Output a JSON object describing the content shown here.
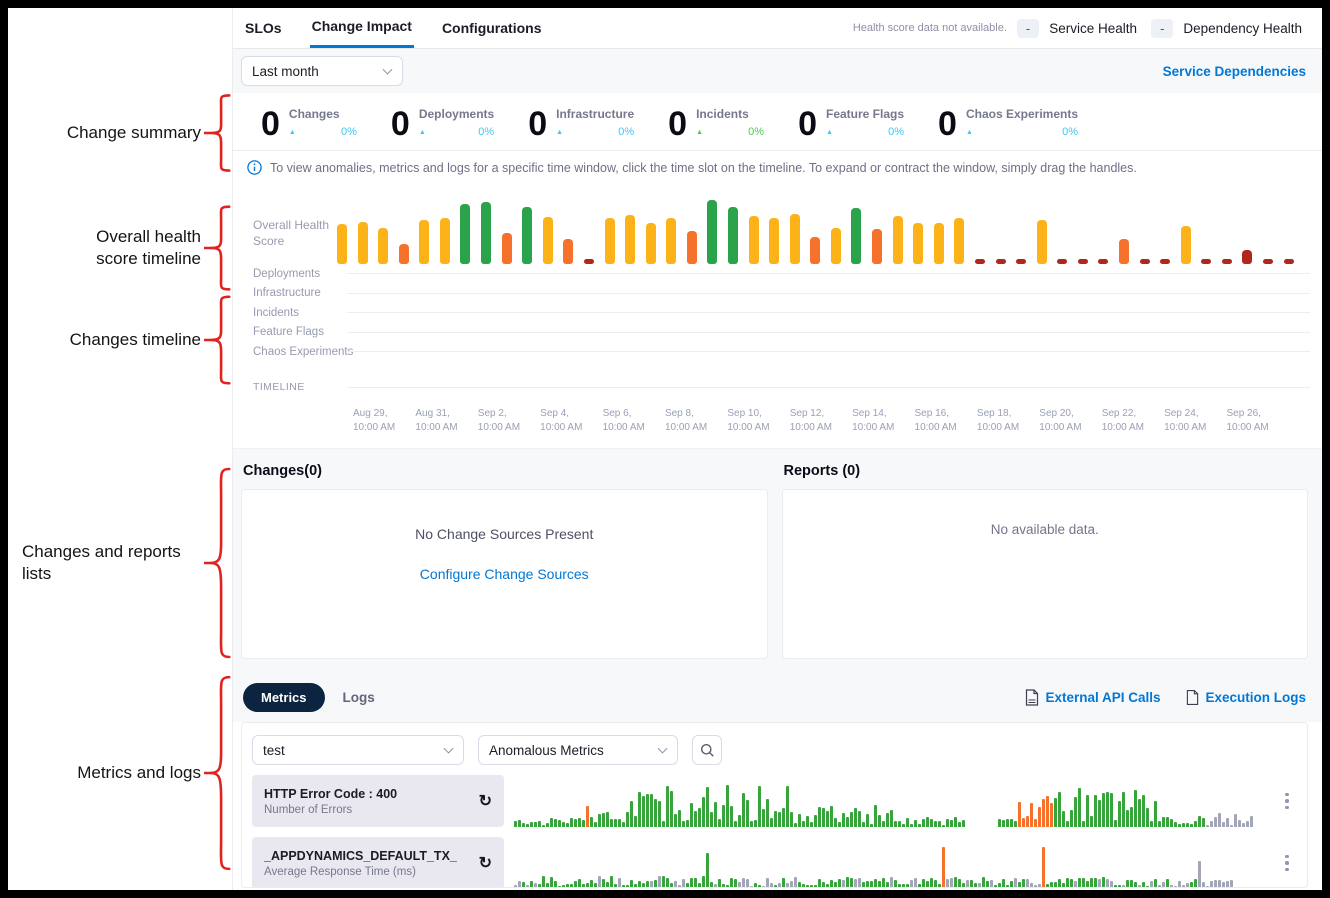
{
  "annotations": [
    "Change summary",
    "Overall health score timeline",
    "Changes timeline",
    "Changes and reports lists",
    "Metrics and logs"
  ],
  "header": {
    "tabs": [
      {
        "label": "SLOs",
        "active": false
      },
      {
        "label": "Change Impact",
        "active": true
      },
      {
        "label": "Configurations",
        "active": false
      }
    ],
    "health_note": "Health score data not available.",
    "indicators": [
      {
        "value": "-",
        "label": "Service Health"
      },
      {
        "value": "-",
        "label": "Dependency Health"
      }
    ]
  },
  "toolbar": {
    "time_range": "Last month",
    "service_dependencies_label": "Service Dependencies"
  },
  "summary": {
    "tiles": [
      {
        "count": "0",
        "label": "Changes",
        "delta": "0%",
        "color": "#3dc7f6"
      },
      {
        "count": "0",
        "label": "Deployments",
        "delta": "0%",
        "color": "#3dc7f6"
      },
      {
        "count": "0",
        "label": "Infrastructure",
        "delta": "0%",
        "color": "#3dc7f6"
      },
      {
        "count": "0",
        "label": "Incidents",
        "delta": "0%",
        "color": "#4dc952"
      },
      {
        "count": "0",
        "label": "Feature Flags",
        "delta": "0%",
        "color": "#3dc7f6"
      },
      {
        "count": "0",
        "label": "Chaos Experiments",
        "delta": "0%",
        "color": "#3dc7f6"
      }
    ]
  },
  "info_banner": "To view anomalies, metrics and logs for a specific time window, click the time slot on the timeline. To expand or contract the window, simply drag the handles.",
  "changes_timeline": {
    "rows": [
      "Deployments",
      "Infrastructure",
      "Incidents",
      "Feature Flags",
      "Chaos Experiments"
    ],
    "timeline_label": "TIMELINE",
    "dates": [
      "Aug 29, 10:00 AM",
      "Aug 31, 10:00 AM",
      "Sep 2, 10:00 AM",
      "Sep 4, 10:00 AM",
      "Sep 6, 10:00 AM",
      "Sep 8, 10:00 AM",
      "Sep 10, 10:00 AM",
      "Sep 12, 10:00 AM",
      "Sep 14, 10:00 AM",
      "Sep 16, 10:00 AM",
      "Sep 18, 10:00 AM",
      "Sep 20, 10:00 AM",
      "Sep 22, 10:00 AM",
      "Sep 24, 10:00 AM",
      "Sep 26, 10:00 AM"
    ]
  },
  "changes_panel": {
    "title": "Changes(0)",
    "empty_text": "No Change Sources Present",
    "link_label": "Configure Change Sources"
  },
  "reports_panel": {
    "title": "Reports (0)",
    "empty_text": "No available data."
  },
  "metrics_section": {
    "tabs": {
      "metrics": "Metrics",
      "logs": "Logs"
    },
    "links": [
      {
        "label": "External API Calls",
        "icon": "api-file-icon"
      },
      {
        "label": "Execution Logs",
        "icon": "file-icon"
      }
    ],
    "filters": {
      "service": "test",
      "metric_type": "Anomalous Metrics"
    },
    "rows": [
      {
        "title": "HTTP Error Code : 400",
        "subtitle": "Number of Errors",
        "chart_index": 1
      },
      {
        "title": "_APPDYNAMICS_DEFAULT_TX_",
        "subtitle": "Average Response Time (ms)",
        "chart_index": 2
      }
    ]
  },
  "chart_data": [
    {
      "id": "overall_health_score",
      "type": "bar",
      "ylabel": "Overall Health Score",
      "ylim": [
        0,
        100
      ],
      "x_axis_labels": [
        "Aug 29, 10:00 AM",
        "Aug 31, 10:00 AM",
        "Sep 2, 10:00 AM",
        "Sep 4, 10:00 AM",
        "Sep 6, 10:00 AM",
        "Sep 8, 10:00 AM",
        "Sep 10, 10:00 AM",
        "Sep 12, 10:00 AM",
        "Sep 14, 10:00 AM",
        "Sep 16, 10:00 AM",
        "Sep 18, 10:00 AM",
        "Sep 20, 10:00 AM",
        "Sep 22, 10:00 AM",
        "Sep 24, 10:00 AM",
        "Sep 26, 10:00 AM"
      ],
      "values": [
        62,
        65,
        56,
        31,
        67,
        70,
        92,
        95,
        47,
        88,
        72,
        39,
        8,
        70,
        76,
        63,
        71,
        50,
        98,
        88,
        74,
        70,
        77,
        42,
        56,
        86,
        54,
        74,
        63,
        63,
        71,
        7,
        7,
        7,
        68,
        7,
        7,
        7,
        38,
        7,
        7,
        59,
        7,
        7,
        22,
        7,
        7
      ],
      "colors": [
        "y",
        "y",
        "y",
        "o",
        "y",
        "y",
        "g",
        "g",
        "o",
        "g",
        "y",
        "o",
        "r",
        "y",
        "y",
        "y",
        "y",
        "o",
        "g",
        "g",
        "y",
        "y",
        "y",
        "o",
        "y",
        "g",
        "o",
        "y",
        "y",
        "y",
        "y",
        "r",
        "r",
        "r",
        "y",
        "r",
        "r",
        "r",
        "o",
        "r",
        "r",
        "y",
        "r",
        "r",
        "r",
        "r",
        "r"
      ],
      "color_map": {
        "y": "#fcb319",
        "o": "#f6712b",
        "g": "#2aa34b",
        "r": "#b1271b"
      }
    },
    {
      "id": "metric_http_error_400",
      "type": "bar",
      "title": "HTTP Error Code : 400 — Number of Errors",
      "seed": 7,
      "color_map": {
        "green": "#37a43c",
        "gray": "#a2a6b6",
        "orange": "#f6712b"
      },
      "segments": [
        {
          "count": 18,
          "color": "green",
          "min": 2,
          "max": 10
        },
        {
          "count": 1,
          "color": "orange",
          "min": 20,
          "max": 22
        },
        {
          "count": 10,
          "color": "green",
          "min": 3,
          "max": 16
        },
        {
          "count": 40,
          "color": "green",
          "min": 6,
          "max": 42
        },
        {
          "count": 28,
          "color": "green",
          "min": 3,
          "max": 22
        },
        {
          "count": 16,
          "color": "green",
          "min": 1,
          "max": 10
        },
        {
          "count": 8,
          "color": "gap",
          "min": 0,
          "max": 0
        },
        {
          "count": 5,
          "color": "green",
          "min": 2,
          "max": 10
        },
        {
          "count": 9,
          "color": "orange",
          "min": 8,
          "max": 32
        },
        {
          "count": 26,
          "color": "green",
          "min": 5,
          "max": 40
        },
        {
          "count": 12,
          "color": "green",
          "min": 2,
          "max": 12
        },
        {
          "count": 12,
          "color": "gray",
          "min": 2,
          "max": 14
        }
      ]
    },
    {
      "id": "metric_appdynamics_default_tx",
      "type": "bar",
      "title": "_APPDYNAMICS_DEFAULT_TX_ — Average Response Time (ms)",
      "seed": 13,
      "color_map": {
        "green": "#37a43c",
        "gray": "#a2a6b6",
        "orange": "#f6712b"
      },
      "segments": [
        {
          "count": 48,
          "color": "mixed",
          "min": 3,
          "max": 13
        },
        {
          "count": 1,
          "color": "green",
          "min": 36,
          "max": 36
        },
        {
          "count": 58,
          "color": "mixed",
          "min": 3,
          "max": 12
        },
        {
          "count": 1,
          "color": "orange",
          "min": 42,
          "max": 42
        },
        {
          "count": 24,
          "color": "mixed",
          "min": 3,
          "max": 12
        },
        {
          "count": 1,
          "color": "orange",
          "min": 42,
          "max": 42
        },
        {
          "count": 38,
          "color": "mixed",
          "min": 3,
          "max": 12
        },
        {
          "count": 1,
          "color": "gray",
          "min": 28,
          "max": 28
        },
        {
          "count": 8,
          "color": "gray",
          "min": 3,
          "max": 9
        }
      ]
    }
  ],
  "colors": {
    "accent_blue": "#0278d5",
    "delta_cyan": "#3dc7f6",
    "delta_green": "#4dc952",
    "bar_yellow": "#fcb319",
    "bar_orange": "#f6712b",
    "bar_green": "#2aa34b",
    "bar_red": "#b1271b",
    "metrics_pill_bg": "#0c2440",
    "annotation_red": "#e0231e"
  }
}
